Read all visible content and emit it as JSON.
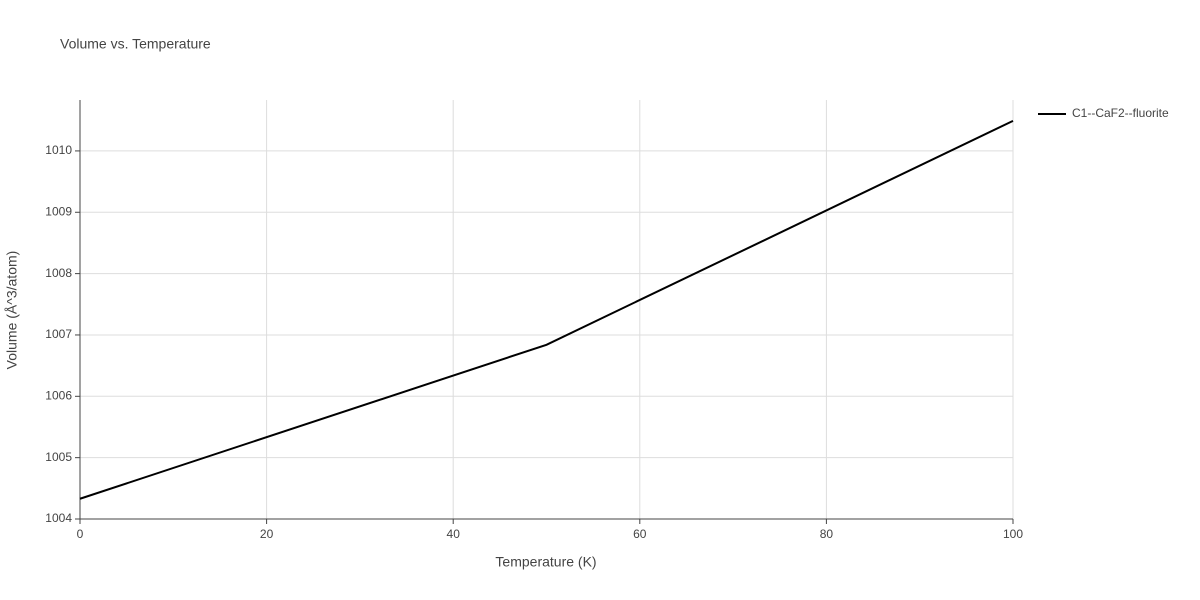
{
  "chart_data": {
    "type": "line",
    "title": "Volume vs. Temperature",
    "x_label": "Temperature (K)",
    "y_label": "Volume (Å^3/atom)",
    "x": [
      0,
      50,
      100
    ],
    "series": [
      {
        "name": "C1--CaF2--fluorite",
        "color": "#000000",
        "values": [
          1004.33,
          1006.84,
          1010.49
        ]
      }
    ],
    "xlim": [
      0,
      100
    ],
    "xticks": [
      0,
      20,
      40,
      60,
      80,
      100
    ],
    "ylim": [
      1004,
      1010.83
    ],
    "yticks": [
      1004,
      1005,
      1006,
      1007,
      1008,
      1009,
      1010
    ],
    "grid": true,
    "legend": "right"
  }
}
